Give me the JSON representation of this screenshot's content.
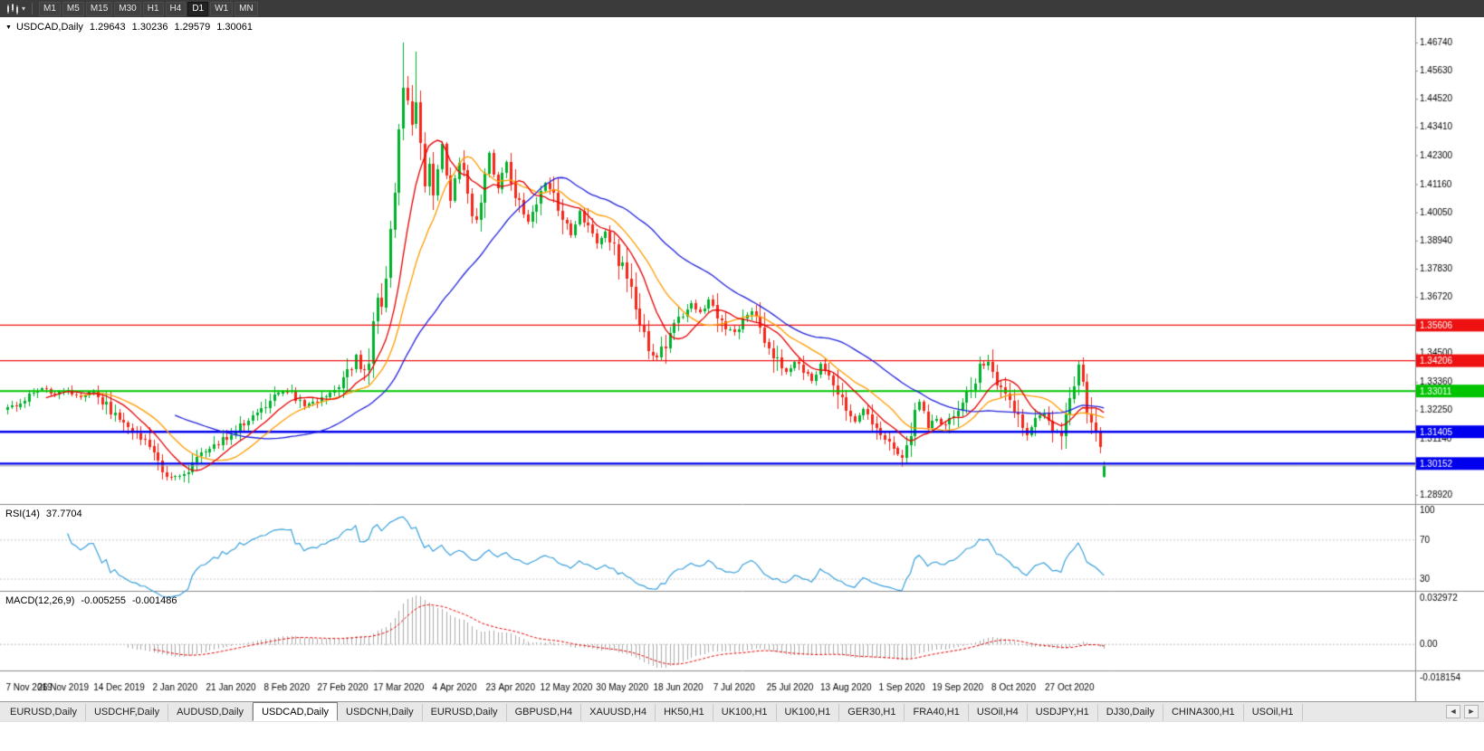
{
  "toolbar": {
    "timeframes": [
      "M1",
      "M5",
      "M15",
      "M30",
      "H1",
      "H4",
      "D1",
      "W1",
      "MN"
    ],
    "selected": "D1"
  },
  "chart": {
    "title": {
      "symbol": "USDCAD,Daily",
      "open": "1.29643",
      "high": "1.30236",
      "low": "1.29579",
      "close": "1.30061"
    },
    "collapse_icon": "▼",
    "price_axis": {
      "ticks": [
        "1.46740",
        "1.45630",
        "1.44520",
        "1.43410",
        "1.42300",
        "1.41160",
        "1.40050",
        "1.38940",
        "1.37830",
        "1.36720",
        "1.35610",
        "1.34500",
        "1.33360",
        "1.32250",
        "1.31140",
        "1.30030",
        "1.28920"
      ]
    },
    "hlines": [
      {
        "price": 1.35606,
        "label": "1.35606",
        "color": "#ee1111",
        "width": 1.4
      },
      {
        "price": 1.34206,
        "label": "1.34206",
        "color": "#ee1111",
        "width": 1.4
      },
      {
        "price": 1.33011,
        "label": "1.33011",
        "color": "#00c400",
        "width": 2
      },
      {
        "price": 1.31405,
        "label": "1.31405",
        "color": "#0000ee",
        "width": 2.4
      },
      {
        "price": 1.30152,
        "label": "1.30152",
        "color": "#0000ee",
        "width": 2.4
      }
    ],
    "last_price_line": {
      "price": 1.30061,
      "color": "#9a9a9a",
      "width": 1
    },
    "date_axis": {
      "labels": [
        "7 Nov 2019",
        "26 Nov 2019",
        "14 Dec 2019",
        "2 Jan 2020",
        "21 Jan 2020",
        "8 Feb 2020",
        "27 Feb 2020",
        "17 Mar 2020",
        "4 Apr 2020",
        "23 Apr 2020",
        "12 May 2020",
        "30 May 2020",
        "18 Jun 2020",
        "7 Jul 2020",
        "25 Jul 2020",
        "13 Aug 2020",
        "1 Sep 2020",
        "19 Sep 2020",
        "8 Oct 2020",
        "27 Oct 2020"
      ],
      "step": 13
    },
    "colors": {
      "up": "#00b02c",
      "down": "#f52819",
      "ma_fast": "#e60000",
      "ma_mid": "#ff9c00",
      "ma_slow": "#2222dd",
      "rsi": "#39a0dc",
      "rsi_level": "#c8c8c8",
      "macd_hist": "#ababab",
      "macd_signal": "#e60000",
      "separator": "#8c8c8c",
      "axis_text": "#000000"
    }
  },
  "indicators": {
    "rsi": {
      "name": "RSI(14)",
      "value": "37.7704",
      "period": 14,
      "axis_labels": [
        {
          "text": "100",
          "v": 100
        },
        {
          "text": "70",
          "v": 70
        },
        {
          "text": "30",
          "v": 30
        }
      ],
      "levels": [
        70,
        30
      ]
    },
    "macd": {
      "name": "MACD(12,26,9)",
      "main_value": "-0.005255",
      "signal_value": "-0.001486",
      "fast": 12,
      "slow": 26,
      "signal": 9,
      "axis_top": "0.032972",
      "axis_zero": "0.00",
      "axis_bottom": "-0.018154"
    }
  },
  "chart_data": {
    "type": "candlestick",
    "symbol": "USDCAD",
    "timeframe": "Daily",
    "num_candles": 256,
    "visible_range": {
      "price_min": 1.2856,
      "price_max": 1.4774
    },
    "last_quote": {
      "open": 1.29643,
      "high": 1.30236,
      "low": 1.29579,
      "close": 1.30061
    },
    "x_labels": [
      "7 Nov 2019",
      "26 Nov 2019",
      "14 Dec 2019",
      "2 Jan 2020",
      "21 Jan 2020",
      "8 Feb 2020",
      "27 Feb 2020",
      "17 Mar 2020",
      "4 Apr 2020",
      "23 Apr 2020",
      "12 May 2020",
      "30 May 2020",
      "18 Jun 2020",
      "7 Jul 2020",
      "25 Jul 2020",
      "13 Aug 2020",
      "1 Sep 2020",
      "19 Sep 2020",
      "8 Oct 2020",
      "27 Oct 2020"
    ],
    "support_resistance": [
      1.35606,
      1.34206,
      1.33011,
      1.31405,
      1.30152
    ],
    "moving_averages": [
      {
        "name": "fast",
        "period": 10
      },
      {
        "name": "mid",
        "period": 18
      },
      {
        "name": "slow",
        "period": 40
      }
    ],
    "anchors": [
      [
        0,
        1.323
      ],
      [
        4,
        1.327
      ],
      [
        8,
        1.331
      ],
      [
        11,
        1.329
      ],
      [
        14,
        1.3305
      ],
      [
        17,
        1.328
      ],
      [
        20,
        1.33
      ],
      [
        23,
        1.325
      ],
      [
        26,
        1.3175
      ],
      [
        29,
        1.315
      ],
      [
        32,
        1.311
      ],
      [
        34,
        1.304
      ],
      [
        36,
        1.2985
      ],
      [
        38,
        1.2968
      ],
      [
        40,
        1.2958
      ],
      [
        42,
        1.2995
      ],
      [
        44,
        1.3035
      ],
      [
        47,
        1.307
      ],
      [
        50,
        1.311
      ],
      [
        52,
        1.3135
      ],
      [
        55,
        1.318
      ],
      [
        58,
        1.322
      ],
      [
        61,
        1.3265
      ],
      [
        64,
        1.33
      ],
      [
        66,
        1.329
      ],
      [
        69,
        1.3245
      ],
      [
        72,
        1.326
      ],
      [
        75,
        1.329
      ],
      [
        78,
        1.334
      ],
      [
        80,
        1.34
      ],
      [
        81,
        1.3445
      ],
      [
        82,
        1.3395
      ],
      [
        83,
        1.337
      ],
      [
        84,
        1.3425
      ],
      [
        85,
        1.356
      ],
      [
        86,
        1.3655
      ],
      [
        87,
        1.3605
      ],
      [
        88,
        1.3745
      ],
      [
        89,
        1.3925
      ],
      [
        90,
        1.4085
      ],
      [
        91,
        1.4305
      ],
      [
        92,
        1.4515
      ],
      [
        93,
        1.4425
      ],
      [
        94,
        1.436
      ],
      [
        95,
        1.4465
      ],
      [
        96,
        1.4255
      ],
      [
        97,
        1.4105
      ],
      [
        98,
        1.4195
      ],
      [
        99,
        1.4085
      ],
      [
        100,
        1.4165
      ],
      [
        101,
        1.427
      ],
      [
        102,
        1.416
      ],
      [
        103,
        1.406
      ],
      [
        104,
        1.4135
      ],
      [
        105,
        1.4205
      ],
      [
        106,
        1.4145
      ],
      [
        107,
        1.409
      ],
      [
        108,
        1.4
      ],
      [
        109,
        1.396
      ],
      [
        110,
        1.407
      ],
      [
        111,
        1.417
      ],
      [
        112,
        1.4235
      ],
      [
        113,
        1.415
      ],
      [
        114,
        1.4105
      ],
      [
        115,
        1.416
      ],
      [
        116,
        1.4205
      ],
      [
        117,
        1.4125
      ],
      [
        119,
        1.4035
      ],
      [
        121,
        1.3975
      ],
      [
        123,
        1.406
      ],
      [
        125,
        1.4125
      ],
      [
        127,
        1.4065
      ],
      [
        129,
        1.3985
      ],
      [
        131,
        1.3925
      ],
      [
        133,
        1.4005
      ],
      [
        135,
        1.3945
      ],
      [
        137,
        1.3875
      ],
      [
        139,
        1.3925
      ],
      [
        141,
        1.3855
      ],
      [
        143,
        1.3785
      ],
      [
        145,
        1.3685
      ],
      [
        147,
        1.3565
      ],
      [
        149,
        1.3475
      ],
      [
        151,
        1.3435
      ],
      [
        153,
        1.3495
      ],
      [
        155,
        1.3585
      ],
      [
        157,
        1.3595
      ],
      [
        159,
        1.3645
      ],
      [
        161,
        1.3605
      ],
      [
        163,
        1.366
      ],
      [
        165,
        1.3605
      ],
      [
        167,
        1.356
      ],
      [
        169,
        1.353
      ],
      [
        171,
        1.3585
      ],
      [
        173,
        1.3615
      ],
      [
        175,
        1.355
      ],
      [
        177,
        1.3485
      ],
      [
        179,
        1.341
      ],
      [
        181,
        1.3375
      ],
      [
        183,
        1.342
      ],
      [
        185,
        1.3395
      ],
      [
        187,
        1.3335
      ],
      [
        189,
        1.34
      ],
      [
        191,
        1.336
      ],
      [
        193,
        1.329
      ],
      [
        195,
        1.3225
      ],
      [
        197,
        1.3185
      ],
      [
        199,
        1.3235
      ],
      [
        201,
        1.319
      ],
      [
        203,
        1.3125
      ],
      [
        205,
        1.3095
      ],
      [
        207,
        1.3055
      ],
      [
        208,
        1.304
      ],
      [
        210,
        1.3145
      ],
      [
        212,
        1.3255
      ],
      [
        214,
        1.317
      ],
      [
        216,
        1.319
      ],
      [
        218,
        1.316
      ],
      [
        220,
        1.3215
      ],
      [
        222,
        1.3255
      ],
      [
        224,
        1.3315
      ],
      [
        226,
        1.3385
      ],
      [
        228,
        1.3415
      ],
      [
        229,
        1.3395
      ],
      [
        231,
        1.3295
      ],
      [
        233,
        1.3255
      ],
      [
        235,
        1.3205
      ],
      [
        237,
        1.3135
      ],
      [
        239,
        1.3175
      ],
      [
        241,
        1.3215
      ],
      [
        243,
        1.315
      ],
      [
        245,
        1.3125
      ],
      [
        246,
        1.3185
      ],
      [
        247,
        1.3265
      ],
      [
        248,
        1.3335
      ],
      [
        249,
        1.339
      ],
      [
        250,
        1.333
      ],
      [
        251,
        1.3185
      ],
      [
        252,
        1.3155
      ],
      [
        253,
        1.3125
      ],
      [
        254,
        1.3055
      ],
      [
        255,
        1.3006
      ]
    ],
    "specials": [
      {
        "i": 40,
        "l": 1.2952
      },
      {
        "i": 92,
        "h": 1.4674
      },
      {
        "i": 95,
        "h": 1.464
      },
      {
        "i": 255,
        "o": 1.29643,
        "h": 1.30236,
        "l": 1.29579,
        "c": 1.30061
      }
    ]
  },
  "tabs": {
    "items": [
      "EURUSD,Daily",
      "USDCHF,Daily",
      "AUDUSD,Daily",
      "USDCAD,Daily",
      "USDCNH,Daily",
      "EURUSD,Daily",
      "GBPUSD,H4",
      "XAUUSD,H4",
      "HK50,H1",
      "UK100,H1",
      "UK100,H1",
      "GER30,H1",
      "FRA40,H1",
      "USOil,H4",
      "USDJPY,H1",
      "DJ30,Daily",
      "CHINA300,H1",
      "USOil,H1"
    ],
    "active_index": 3,
    "scroll_left_icon": "◄",
    "scroll_right_icon": "►"
  }
}
